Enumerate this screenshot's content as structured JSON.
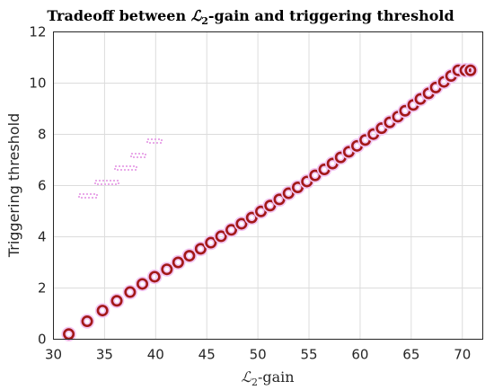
{
  "chart_data": {
    "type": "scatter",
    "title_prefix": "Tradeoff between ",
    "title_math": "ℒ",
    "title_sub": "2",
    "title_suffix": "-gain and triggering threshold",
    "xlabel_math": "ℒ",
    "xlabel_sub": "2",
    "xlabel_suffix": "-gain",
    "ylabel": "Triggering threshold",
    "xlim": [
      30,
      72
    ],
    "ylim": [
      0,
      12
    ],
    "xticks": [
      30,
      35,
      40,
      45,
      50,
      55,
      60,
      65,
      70
    ],
    "yticks": [
      0,
      2,
      4,
      6,
      8,
      10,
      12
    ],
    "grid": true,
    "marker_color": "#a31818",
    "halo_color": "#f2c6f2",
    "series": [
      {
        "x": [
          31.5,
          33.3,
          34.8,
          36.2,
          37.5,
          38.7,
          39.9,
          41.1,
          42.2,
          43.3,
          44.4,
          45.4,
          46.4,
          47.4,
          48.4,
          49.4,
          50.3,
          51.2,
          52.1,
          53.0,
          53.9,
          54.8,
          55.6,
          56.5,
          57.3,
          58.1,
          58.9,
          59.7,
          60.5,
          61.3,
          62.1,
          62.9,
          63.7,
          64.4,
          65.2,
          65.9,
          66.7,
          67.4,
          68.2,
          68.9,
          69.6,
          70.3,
          70.8
        ],
        "y": [
          0.2,
          0.7,
          1.12,
          1.5,
          1.84,
          2.16,
          2.44,
          2.73,
          3.0,
          3.26,
          3.53,
          3.77,
          4.02,
          4.27,
          4.51,
          4.75,
          4.99,
          5.22,
          5.46,
          5.7,
          5.93,
          6.16,
          6.4,
          6.63,
          6.86,
          7.1,
          7.32,
          7.55,
          7.78,
          8.01,
          8.24,
          8.47,
          8.69,
          8.92,
          9.15,
          9.38,
          9.6,
          9.83,
          10.05,
          10.28,
          10.5,
          10.5,
          10.5
        ]
      }
    ]
  }
}
